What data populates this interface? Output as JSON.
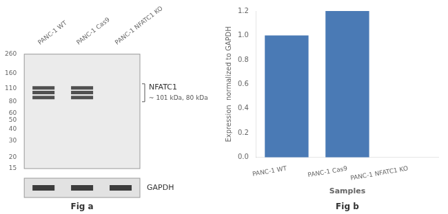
{
  "chart_data": [
    {
      "type": "blot",
      "categories": [
        "PANC-1 WT",
        "PANC-1 Cas9",
        "PANC-1 NFATC1 KO"
      ],
      "log": "y",
      "ylim": [
        15,
        260
      ],
      "yticks": [
        260,
        160,
        110,
        80,
        60,
        50,
        40,
        30,
        20,
        15
      ],
      "series": [
        {
          "name": "NFATC1",
          "values": [
            112,
            112,
            null
          ]
        },
        {
          "name": "NFATC1",
          "values": [
            100,
            100,
            null
          ]
        },
        {
          "name": "NFATC1",
          "values": [
            88,
            88,
            null
          ]
        }
      ],
      "annotations": [
        "~ 101 kDa, 80 kDa",
        "GAPDH",
        "Fig a"
      ],
      "grid": false
    },
    {
      "type": "bar",
      "categories": [
        "PANC-1 WT",
        "PANC-1 Cas9",
        "PANC-1 NFATC1 KO"
      ],
      "values": [
        1.0,
        1.2,
        0.0
      ],
      "color": "#4a7ab5",
      "ylabel": "Expression  normalized to GAPDH",
      "xlabel": "Samples",
      "ylim": [
        0,
        1.2
      ],
      "yticks": [
        {
          "value": 0,
          "label": "0.0"
        },
        0.2,
        0.4,
        0.6,
        0.8,
        {
          "value": 1,
          "label": "1.0"
        },
        1.2
      ],
      "annotations": [
        "Fig b"
      ],
      "grid": false
    }
  ]
}
